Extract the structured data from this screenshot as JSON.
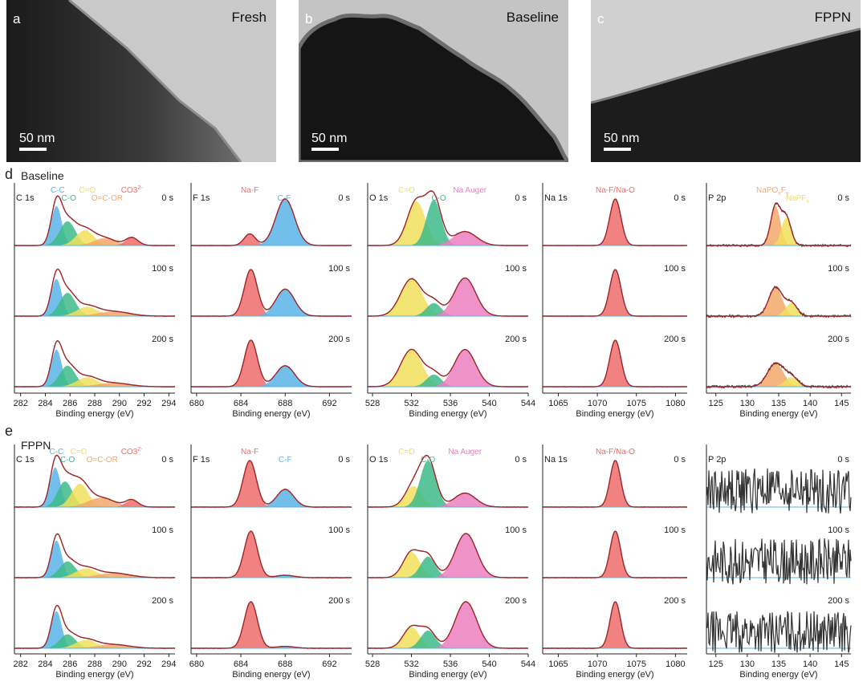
{
  "tem_panels": [
    {
      "letter": "a",
      "label": "Fresh",
      "scale": "50 nm"
    },
    {
      "letter": "b",
      "label": "Baseline",
      "scale": "50 nm"
    },
    {
      "letter": "c",
      "label": "FPPN",
      "scale": "50 nm"
    }
  ],
  "rows": [
    {
      "letter": "d",
      "title": "Baseline"
    },
    {
      "letter": "e",
      "title": "FPPN"
    }
  ],
  "colors": {
    "blue": "#5ab4e8",
    "green": "#3dbb8a",
    "yellow": "#f0e05a",
    "orange": "#f3a86a",
    "red": "#ef6c6c",
    "pink": "#ec7fbf",
    "envelope": "#a0282a",
    "raw": "#333333"
  },
  "chart_data": [
    {
      "id": "d-c1s",
      "type": "line",
      "row": "Baseline",
      "core_level": "C 1s",
      "xlabel": "Binding energy (eV)",
      "xlim": [
        281.5,
        294.5
      ],
      "xticks": [
        282,
        284,
        286,
        288,
        290,
        292,
        294
      ],
      "times": [
        "0 s",
        "100 s",
        "200 s"
      ],
      "peak_labels": [
        {
          "text": "C-C",
          "color": "blue",
          "x": 285.0
        },
        {
          "text": "C-O",
          "color": "green",
          "x": 285.9
        },
        {
          "text": "C=O",
          "color": "yellow",
          "x": 287.4
        },
        {
          "text": "O=C-OR",
          "color": "orange",
          "x": 289.0
        },
        {
          "text": "CO3",
          "sup": "2-",
          "color": "red",
          "x": 291.0
        }
      ],
      "series": [
        {
          "time": "0 s",
          "components": [
            {
              "center": 284.9,
              "fwhm": 1.0,
              "height": 0.85,
              "color": "blue"
            },
            {
              "center": 285.8,
              "fwhm": 1.5,
              "height": 0.52,
              "color": "green"
            },
            {
              "center": 287.2,
              "fwhm": 1.7,
              "height": 0.33,
              "color": "yellow"
            },
            {
              "center": 288.8,
              "fwhm": 2.0,
              "height": 0.16,
              "color": "orange"
            },
            {
              "center": 291.0,
              "fwhm": 1.2,
              "height": 0.17,
              "color": "red"
            }
          ]
        },
        {
          "time": "100 s",
          "components": [
            {
              "center": 284.9,
              "fwhm": 1.0,
              "height": 0.8,
              "color": "blue"
            },
            {
              "center": 285.8,
              "fwhm": 1.5,
              "height": 0.5,
              "color": "green"
            },
            {
              "center": 287.4,
              "fwhm": 2.0,
              "height": 0.2,
              "color": "yellow"
            },
            {
              "center": 289.5,
              "fwhm": 3.0,
              "height": 0.1,
              "color": "orange"
            }
          ]
        },
        {
          "time": "200 s",
          "components": [
            {
              "center": 284.9,
              "fwhm": 1.0,
              "height": 0.8,
              "color": "blue"
            },
            {
              "center": 285.8,
              "fwhm": 1.5,
              "height": 0.45,
              "color": "green"
            },
            {
              "center": 287.4,
              "fwhm": 2.0,
              "height": 0.2,
              "color": "yellow"
            },
            {
              "center": 289.5,
              "fwhm": 3.0,
              "height": 0.08,
              "color": "orange"
            }
          ]
        }
      ]
    },
    {
      "id": "d-f1s",
      "type": "line",
      "row": "Baseline",
      "core_level": "F 1s",
      "xlabel": "Binding energy (eV)",
      "xlim": [
        679.5,
        694
      ],
      "xticks": [
        680,
        684,
        688,
        692
      ],
      "times": [
        "0 s",
        "100 s",
        "200 s"
      ],
      "peak_labels": [
        {
          "text": "Na-F",
          "color": "red",
          "x": 684.8
        },
        {
          "text": "C-F",
          "color": "blue",
          "x": 687.9
        }
      ],
      "series": [
        {
          "time": "0 s",
          "components": [
            {
              "center": 684.8,
              "fwhm": 1.2,
              "height": 0.25,
              "color": "red"
            },
            {
              "center": 688.0,
              "fwhm": 2.0,
              "height": 1.0,
              "color": "blue"
            }
          ]
        },
        {
          "time": "100 s",
          "components": [
            {
              "center": 684.9,
              "fwhm": 1.4,
              "height": 1.0,
              "color": "red"
            },
            {
              "center": 688.0,
              "fwhm": 2.0,
              "height": 0.58,
              "color": "blue"
            }
          ]
        },
        {
          "time": "200 s",
          "components": [
            {
              "center": 684.9,
              "fwhm": 1.4,
              "height": 1.0,
              "color": "red"
            },
            {
              "center": 688.0,
              "fwhm": 2.0,
              "height": 0.45,
              "color": "blue"
            }
          ]
        }
      ]
    },
    {
      "id": "d-o1s",
      "type": "line",
      "row": "Baseline",
      "core_level": "O 1s",
      "xlabel": "Binding energy (eV)",
      "xlim": [
        527.5,
        544
      ],
      "xticks": [
        528,
        532,
        536,
        540,
        544
      ],
      "times": [
        "0 s",
        "100 s",
        "200 s"
      ],
      "peak_labels": [
        {
          "text": "C=O",
          "color": "yellow",
          "x": 531.5
        },
        {
          "text": "C-O",
          "color": "green",
          "x": 534.8
        },
        {
          "text": "Na Auger",
          "color": "pink",
          "x": 538.0
        }
      ],
      "series": [
        {
          "time": "0 s",
          "components": [
            {
              "center": 532.5,
              "fwhm": 2.2,
              "height": 0.95,
              "color": "yellow"
            },
            {
              "center": 534.3,
              "fwhm": 1.8,
              "height": 0.98,
              "color": "green"
            },
            {
              "center": 537.5,
              "fwhm": 2.8,
              "height": 0.3,
              "color": "pink"
            }
          ]
        },
        {
          "time": "100 s",
          "components": [
            {
              "center": 532.0,
              "fwhm": 2.6,
              "height": 0.8,
              "color": "yellow"
            },
            {
              "center": 534.3,
              "fwhm": 1.8,
              "height": 0.28,
              "color": "green"
            },
            {
              "center": 537.5,
              "fwhm": 2.6,
              "height": 0.82,
              "color": "pink"
            }
          ]
        },
        {
          "time": "200 s",
          "components": [
            {
              "center": 532.0,
              "fwhm": 2.6,
              "height": 0.8,
              "color": "yellow"
            },
            {
              "center": 534.3,
              "fwhm": 1.8,
              "height": 0.26,
              "color": "green"
            },
            {
              "center": 537.5,
              "fwhm": 2.6,
              "height": 0.8,
              "color": "pink"
            }
          ]
        }
      ]
    },
    {
      "id": "d-na1s",
      "type": "line",
      "row": "Baseline",
      "core_level": "Na 1s",
      "xlabel": "Binding energy (eV)",
      "xlim": [
        1063,
        1081.5
      ],
      "xticks": [
        1065,
        1070,
        1075,
        1080
      ],
      "times": [
        "0 s",
        "100 s",
        "200 s"
      ],
      "peak_labels": [
        {
          "text": "Na-F/Na-O",
          "color": "red",
          "x": 1072.3
        }
      ],
      "series": [
        {
          "time": "0 s",
          "components": [
            {
              "center": 1072.3,
              "fwhm": 1.7,
              "height": 1.0,
              "color": "red"
            }
          ]
        },
        {
          "time": "100 s",
          "components": [
            {
              "center": 1072.3,
              "fwhm": 1.7,
              "height": 1.0,
              "color": "red"
            }
          ]
        },
        {
          "time": "200 s",
          "components": [
            {
              "center": 1072.3,
              "fwhm": 1.7,
              "height": 1.0,
              "color": "red"
            }
          ]
        }
      ]
    },
    {
      "id": "d-p2p",
      "type": "line",
      "row": "Baseline",
      "core_level": "P 2p",
      "xlabel": "Binding energy (eV)",
      "xlim": [
        123.5,
        146.5
      ],
      "xticks": [
        125,
        130,
        135,
        140,
        145
      ],
      "times": [
        "0 s",
        "100 s",
        "200 s"
      ],
      "peak_labels": [
        {
          "text": "NaPO",
          "sub1": "x",
          "text2": "F",
          "sub2": "y",
          "color": "orange",
          "x": 134.0
        },
        {
          "text": "NaPF",
          "sub1": "x",
          "color": "yellow",
          "x": 138.0
        }
      ],
      "series": [
        {
          "time": "0 s",
          "noise": 0.05,
          "components": [
            {
              "center": 134.5,
              "fwhm": 1.8,
              "height": 0.85,
              "color": "orange"
            },
            {
              "center": 136.2,
              "fwhm": 1.8,
              "height": 0.6,
              "color": "yellow"
            }
          ]
        },
        {
          "time": "100 s",
          "noise": 0.06,
          "components": [
            {
              "center": 134.5,
              "fwhm": 2.5,
              "height": 0.62,
              "color": "orange"
            },
            {
              "center": 137.0,
              "fwhm": 2.2,
              "height": 0.28,
              "color": "yellow"
            }
          ]
        },
        {
          "time": "200 s",
          "noise": 0.06,
          "components": [
            {
              "center": 134.5,
              "fwhm": 3.0,
              "height": 0.5,
              "color": "orange"
            },
            {
              "center": 137.0,
              "fwhm": 2.5,
              "height": 0.2,
              "color": "yellow"
            }
          ]
        }
      ]
    },
    {
      "id": "e-c1s",
      "type": "line",
      "row": "FPPN",
      "core_level": "C 1s",
      "xlabel": "Binding energy (eV)",
      "xlim": [
        281.5,
        294.5
      ],
      "xticks": [
        282,
        284,
        286,
        288,
        290,
        292,
        294
      ],
      "times": [
        "0 s",
        "100 s",
        "200 s"
      ],
      "peak_labels": [
        {
          "text": "C-C",
          "color": "blue",
          "x": 284.9
        },
        {
          "text": "C-O",
          "color": "green",
          "x": 285.8
        },
        {
          "text": "C=O",
          "color": "yellow",
          "x": 286.7
        },
        {
          "text": "O=C-OR",
          "color": "orange",
          "x": 288.6
        },
        {
          "text": "CO3",
          "sup": "2-",
          "color": "red",
          "x": 291.0
        }
      ],
      "series": [
        {
          "time": "0 s",
          "components": [
            {
              "center": 284.8,
              "fwhm": 1.0,
              "height": 0.85,
              "color": "blue"
            },
            {
              "center": 285.6,
              "fwhm": 1.4,
              "height": 0.55,
              "color": "green"
            },
            {
              "center": 286.8,
              "fwhm": 1.6,
              "height": 0.5,
              "color": "yellow"
            },
            {
              "center": 288.5,
              "fwhm": 2.5,
              "height": 0.2,
              "color": "orange"
            },
            {
              "center": 291.0,
              "fwhm": 1.2,
              "height": 0.15,
              "color": "red"
            }
          ]
        },
        {
          "time": "100 s",
          "components": [
            {
              "center": 284.9,
              "fwhm": 1.0,
              "height": 0.8,
              "color": "blue"
            },
            {
              "center": 285.8,
              "fwhm": 1.5,
              "height": 0.35,
              "color": "green"
            },
            {
              "center": 287.3,
              "fwhm": 2.0,
              "height": 0.2,
              "color": "yellow"
            },
            {
              "center": 289.5,
              "fwhm": 3.0,
              "height": 0.1,
              "color": "orange"
            }
          ]
        },
        {
          "time": "200 s",
          "components": [
            {
              "center": 284.9,
              "fwhm": 1.0,
              "height": 0.8,
              "color": "blue"
            },
            {
              "center": 285.8,
              "fwhm": 1.5,
              "height": 0.3,
              "color": "green"
            },
            {
              "center": 287.3,
              "fwhm": 2.0,
              "height": 0.18,
              "color": "yellow"
            },
            {
              "center": 289.5,
              "fwhm": 3.0,
              "height": 0.08,
              "color": "orange"
            }
          ]
        }
      ]
    },
    {
      "id": "e-f1s",
      "type": "line",
      "row": "FPPN",
      "core_level": "F 1s",
      "xlabel": "Binding energy (eV)",
      "xlim": [
        679.5,
        694
      ],
      "xticks": [
        680,
        684,
        688,
        692
      ],
      "times": [
        "0 s",
        "100 s",
        "200 s"
      ],
      "peak_labels": [
        {
          "text": "Na-F",
          "color": "red",
          "x": 684.8
        },
        {
          "text": "C-F",
          "color": "blue",
          "x": 688.0
        }
      ],
      "series": [
        {
          "time": "0 s",
          "components": [
            {
              "center": 684.8,
              "fwhm": 1.4,
              "height": 1.0,
              "color": "red"
            },
            {
              "center": 688.0,
              "fwhm": 1.8,
              "height": 0.38,
              "color": "blue"
            }
          ]
        },
        {
          "time": "100 s",
          "components": [
            {
              "center": 684.9,
              "fwhm": 1.4,
              "height": 1.0,
              "color": "red"
            },
            {
              "center": 688.0,
              "fwhm": 2.0,
              "height": 0.05,
              "color": "blue"
            }
          ]
        },
        {
          "time": "200 s",
          "components": [
            {
              "center": 684.9,
              "fwhm": 1.4,
              "height": 1.0,
              "color": "red"
            },
            {
              "center": 688.0,
              "fwhm": 2.0,
              "height": 0.04,
              "color": "blue"
            }
          ]
        }
      ]
    },
    {
      "id": "e-o1s",
      "type": "line",
      "row": "FPPN",
      "core_level": "O 1s",
      "xlabel": "Binding energy (eV)",
      "xlim": [
        527.5,
        544
      ],
      "xticks": [
        528,
        532,
        536,
        540,
        544
      ],
      "times": [
        "0 s",
        "100 s",
        "200 s"
      ],
      "peak_labels": [
        {
          "text": "C=O",
          "color": "yellow",
          "x": 531.5
        },
        {
          "text": "C-O",
          "color": "green",
          "x": 533.7
        },
        {
          "text": "Na Auger",
          "color": "pink",
          "x": 537.5
        }
      ],
      "series": [
        {
          "time": "0 s",
          "components": [
            {
              "center": 532.2,
              "fwhm": 2.0,
              "height": 0.45,
              "color": "yellow"
            },
            {
              "center": 533.7,
              "fwhm": 1.9,
              "height": 1.0,
              "color": "green"
            },
            {
              "center": 537.5,
              "fwhm": 2.6,
              "height": 0.3,
              "color": "pink"
            }
          ]
        },
        {
          "time": "100 s",
          "components": [
            {
              "center": 532.0,
              "fwhm": 2.0,
              "height": 0.55,
              "color": "yellow"
            },
            {
              "center": 533.7,
              "fwhm": 1.8,
              "height": 0.45,
              "color": "green"
            },
            {
              "center": 537.6,
              "fwhm": 2.6,
              "height": 0.95,
              "color": "pink"
            }
          ]
        },
        {
          "time": "200 s",
          "components": [
            {
              "center": 532.0,
              "fwhm": 2.0,
              "height": 0.45,
              "color": "yellow"
            },
            {
              "center": 533.7,
              "fwhm": 1.8,
              "height": 0.38,
              "color": "green"
            },
            {
              "center": 537.6,
              "fwhm": 2.6,
              "height": 1.0,
              "color": "pink"
            }
          ]
        }
      ]
    },
    {
      "id": "e-na1s",
      "type": "line",
      "row": "FPPN",
      "core_level": "Na 1s",
      "xlabel": "Binding energy (eV)",
      "xlim": [
        1063,
        1081.5
      ],
      "xticks": [
        1065,
        1070,
        1075,
        1080
      ],
      "times": [
        "0 s",
        "100 s",
        "200 s"
      ],
      "peak_labels": [
        {
          "text": "Na-F/Na-O",
          "color": "red",
          "x": 1072.3
        }
      ],
      "series": [
        {
          "time": "0 s",
          "components": [
            {
              "center": 1072.3,
              "fwhm": 1.6,
              "height": 1.0,
              "color": "red"
            }
          ]
        },
        {
          "time": "100 s",
          "components": [
            {
              "center": 1072.3,
              "fwhm": 1.6,
              "height": 1.0,
              "color": "red"
            }
          ]
        },
        {
          "time": "200 s",
          "components": [
            {
              "center": 1072.3,
              "fwhm": 1.6,
              "height": 1.0,
              "color": "red"
            }
          ]
        }
      ]
    },
    {
      "id": "e-p2p",
      "type": "line",
      "row": "FPPN",
      "core_level": "P 2p",
      "xlabel": "Binding energy (eV)",
      "xlim": [
        123.5,
        146.5
      ],
      "xticks": [
        125,
        130,
        135,
        140,
        145
      ],
      "times": [
        "0 s",
        "100 s",
        "200 s"
      ],
      "peak_labels": [],
      "series": [
        {
          "time": "0 s",
          "noise": 0.55,
          "components": []
        },
        {
          "time": "100 s",
          "noise": 0.55,
          "components": []
        },
        {
          "time": "200 s",
          "noise": 0.5,
          "components": []
        }
      ]
    }
  ]
}
